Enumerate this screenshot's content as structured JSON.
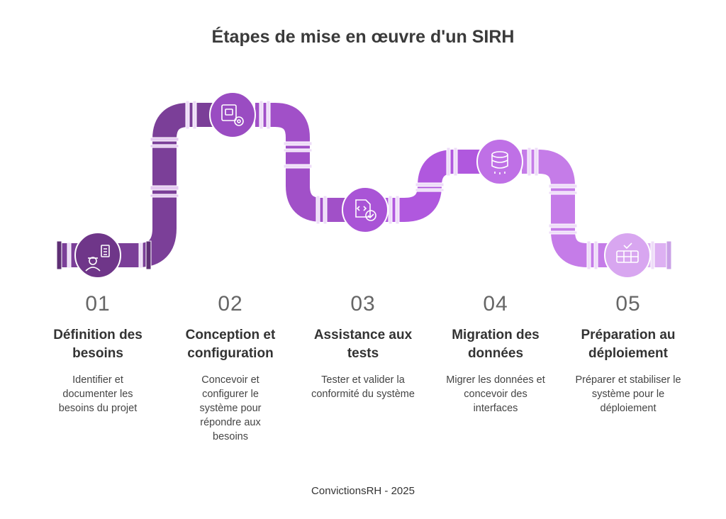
{
  "title": "Étapes de mise en œuvre d'un SIRH",
  "footer": "ConvictionsRH - 2025",
  "colors": {
    "stage1": "#7b3f98",
    "stage2": "#a150c8",
    "stage3": "#b058de",
    "stage4": "#c57ce8",
    "stage5": "#ddb0f2",
    "joint": "#eedcf8",
    "text_dark": "#333333",
    "text_num": "#666666"
  },
  "steps": [
    {
      "number": "01",
      "title": "Définition des besoins",
      "description": "Identifier et documenter les besoins du projet",
      "icon": "user-checklist-icon"
    },
    {
      "number": "02",
      "title": "Conception et configuration",
      "description": "Concevoir et configurer le système pour répondre aux besoins",
      "icon": "settings-document-icon"
    },
    {
      "number": "03",
      "title": "Assistance aux tests",
      "description": "Tester et valider la conformité du système",
      "icon": "code-check-icon"
    },
    {
      "number": "04",
      "title": "Migration des données",
      "description": "Migrer les données et concevoir des interfaces",
      "icon": "database-icon"
    },
    {
      "number": "05",
      "title": "Préparation au déploiement",
      "description": "Préparer et stabiliser le système pour le déploiement",
      "icon": "server-check-icon"
    }
  ]
}
